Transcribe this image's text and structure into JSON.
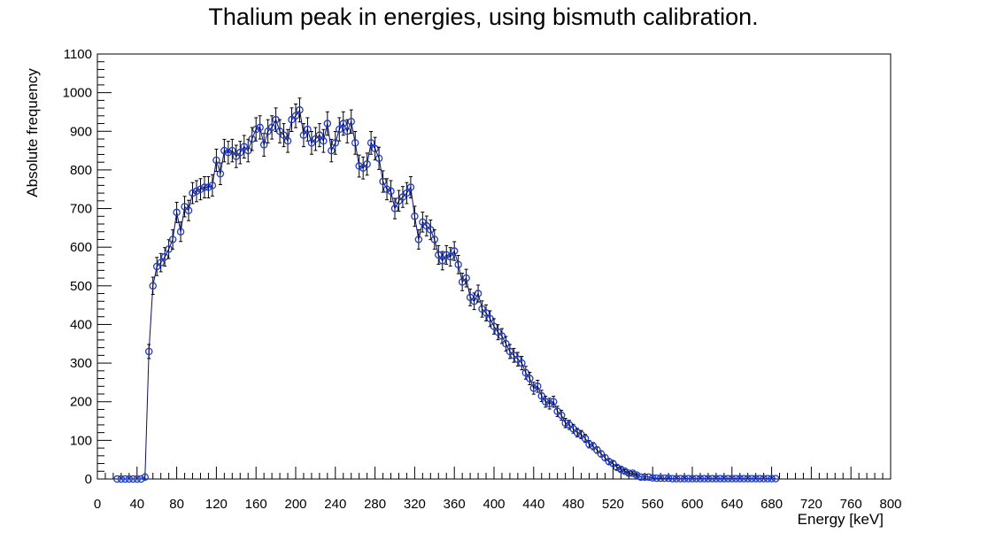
{
  "chart_data": {
    "type": "scatter",
    "title": "Thalium peak in energies, using bismuth calibration.",
    "xlabel": "Energy [keV]",
    "ylabel": "Absolute frequency",
    "xlim": [
      0,
      800
    ],
    "ylim": [
      0,
      1100
    ],
    "x_ticks": [
      "0",
      "40",
      "80",
      "120",
      "160",
      "200",
      "240",
      "280",
      "320",
      "360",
      "400",
      "440",
      "480",
      "520",
      "560",
      "600",
      "640",
      "680",
      "720",
      "760",
      "800"
    ],
    "y_ticks": [
      "0",
      "100",
      "200",
      "300",
      "400",
      "500",
      "600",
      "700",
      "800",
      "900",
      "1000",
      "1100"
    ],
    "grid": false,
    "legend": "none",
    "colors": {
      "markers": "#1f3cc8",
      "line": "#0a0a7a",
      "errorbars": "#000000"
    },
    "series": [
      {
        "x_start": 20,
        "x_step": 4,
        "values": [
          0,
          0,
          0,
          0,
          0,
          0,
          0,
          5,
          330,
          500,
          550,
          560,
          575,
          595,
          620,
          690,
          640,
          705,
          695,
          740,
          745,
          750,
          755,
          755,
          760,
          825,
          790,
          850,
          845,
          850,
          835,
          845,
          860,
          850,
          880,
          905,
          910,
          865,
          900,
          910,
          930,
          900,
          890,
          875,
          930,
          940,
          955,
          890,
          905,
          870,
          880,
          890,
          875,
          920,
          850,
          870,
          905,
          920,
          900,
          925,
          870,
          810,
          805,
          815,
          870,
          855,
          830,
          770,
          750,
          745,
          700,
          720,
          730,
          740,
          755,
          680,
          620,
          665,
          655,
          645,
          620,
          580,
          565,
          580,
          575,
          590,
          555,
          510,
          520,
          470,
          460,
          480,
          440,
          430,
          415,
          395,
          380,
          370,
          350,
          330,
          320,
          310,
          300,
          275,
          260,
          235,
          240,
          215,
          200,
          195,
          200,
          175,
          165,
          145,
          140,
          130,
          120,
          115,
          105,
          90,
          85,
          75,
          65,
          55,
          45,
          40,
          30,
          25,
          20,
          15,
          15,
          10,
          5,
          5,
          5,
          3,
          2,
          2,
          2,
          2,
          1,
          1,
          1,
          1,
          1,
          1,
          1,
          1,
          1,
          1,
          1,
          1,
          1,
          1,
          1,
          1,
          1,
          1,
          1,
          1,
          1,
          1,
          1,
          1,
          1,
          1,
          1
        ]
      }
    ]
  }
}
